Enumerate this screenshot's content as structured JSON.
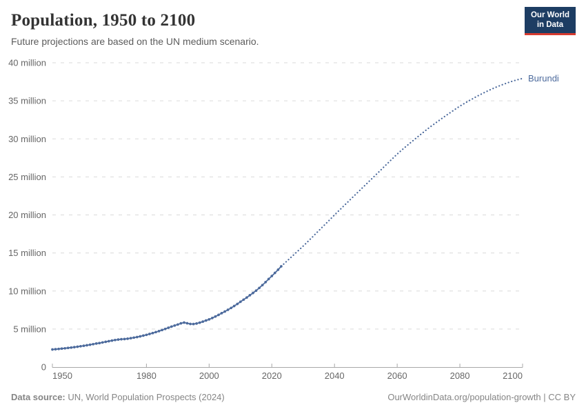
{
  "header": {
    "title": "Population, 1950 to 2100",
    "subtitle": "Future projections are based on the UN medium scenario.",
    "logo": {
      "line1": "Our World",
      "line2": "in Data",
      "bg": "#1d3d63",
      "accent": "#d73b2f"
    }
  },
  "chart_data": {
    "type": "line",
    "title": "Population, 1950 to 2100",
    "xlabel": "",
    "ylabel": "",
    "xlim": [
      1950,
      2100
    ],
    "ylim": [
      0,
      40
    ],
    "unit": "million",
    "grid": "horizontal-dashed",
    "legend_position": "end-of-line",
    "end_label": "Burundi",
    "line_color": "#4c6a9c",
    "x_ticks": [
      1950,
      1980,
      2000,
      2020,
      2040,
      2060,
      2080,
      2100
    ],
    "y_ticks": [
      {
        "value": 0,
        "label": "0"
      },
      {
        "value": 5,
        "label": "5 million"
      },
      {
        "value": 10,
        "label": "10 million"
      },
      {
        "value": 15,
        "label": "15 million"
      },
      {
        "value": 20,
        "label": "20 million"
      },
      {
        "value": 25,
        "label": "25 million"
      },
      {
        "value": 30,
        "label": "30 million"
      },
      {
        "value": 35,
        "label": "35 million"
      },
      {
        "value": 40,
        "label": "40 million"
      }
    ],
    "series": [
      {
        "name": "Burundi — historical estimates",
        "style": "solid",
        "color": "#4c6a9c",
        "start_year": 1950,
        "values": [
          2.31,
          2.35,
          2.39,
          2.43,
          2.47,
          2.52,
          2.57,
          2.62,
          2.68,
          2.74,
          2.8,
          2.87,
          2.94,
          3.01,
          3.09,
          3.16,
          3.24,
          3.32,
          3.4,
          3.48,
          3.56,
          3.62,
          3.66,
          3.68,
          3.73,
          3.8,
          3.87,
          3.95,
          4.04,
          4.14,
          4.24,
          4.35,
          4.47,
          4.6,
          4.73,
          4.87,
          5.02,
          5.17,
          5.32,
          5.46,
          5.6,
          5.75,
          5.85,
          5.76,
          5.67,
          5.66,
          5.72,
          5.84,
          5.98,
          6.12,
          6.27,
          6.45,
          6.65,
          6.86,
          7.08,
          7.3,
          7.53,
          7.77,
          8.03,
          8.3,
          8.58,
          8.86,
          9.14,
          9.44,
          9.74,
          10.05,
          10.4,
          10.78,
          11.17,
          11.57,
          11.97,
          12.38,
          12.8,
          13.24
        ]
      },
      {
        "name": "Burundi — UN medium scenario projection",
        "style": "dotted",
        "color": "#4c6a9c",
        "start_year": 2023,
        "values": [
          13.24,
          13.62,
          14.0,
          14.38,
          14.76,
          15.14,
          15.52,
          15.9,
          16.3,
          16.71,
          17.12,
          17.53,
          17.94,
          18.35,
          18.76,
          19.17,
          19.58,
          20.0,
          20.4,
          20.8,
          21.2,
          21.6,
          22.0,
          22.4,
          22.8,
          23.2,
          23.6,
          24.0,
          24.4,
          24.8,
          25.2,
          25.6,
          26.0,
          26.4,
          26.8,
          27.2,
          27.6,
          28.0,
          28.36,
          28.72,
          29.07,
          29.41,
          29.75,
          30.09,
          30.42,
          30.75,
          31.08,
          31.4,
          31.71,
          32.01,
          32.31,
          32.61,
          32.9,
          33.19,
          33.47,
          33.75,
          34.03,
          34.3,
          34.55,
          34.79,
          35.03,
          35.26,
          35.49,
          35.71,
          35.92,
          36.13,
          36.33,
          36.52,
          36.7,
          36.87,
          37.03,
          37.19,
          37.34,
          37.48,
          37.61,
          37.73,
          37.84,
          37.94
        ]
      }
    ]
  },
  "footer": {
    "source_label": "Data source:",
    "source": " UN, World Population Prospects (2024)",
    "link": "OurWorldinData.org/population-growth | CC BY"
  }
}
